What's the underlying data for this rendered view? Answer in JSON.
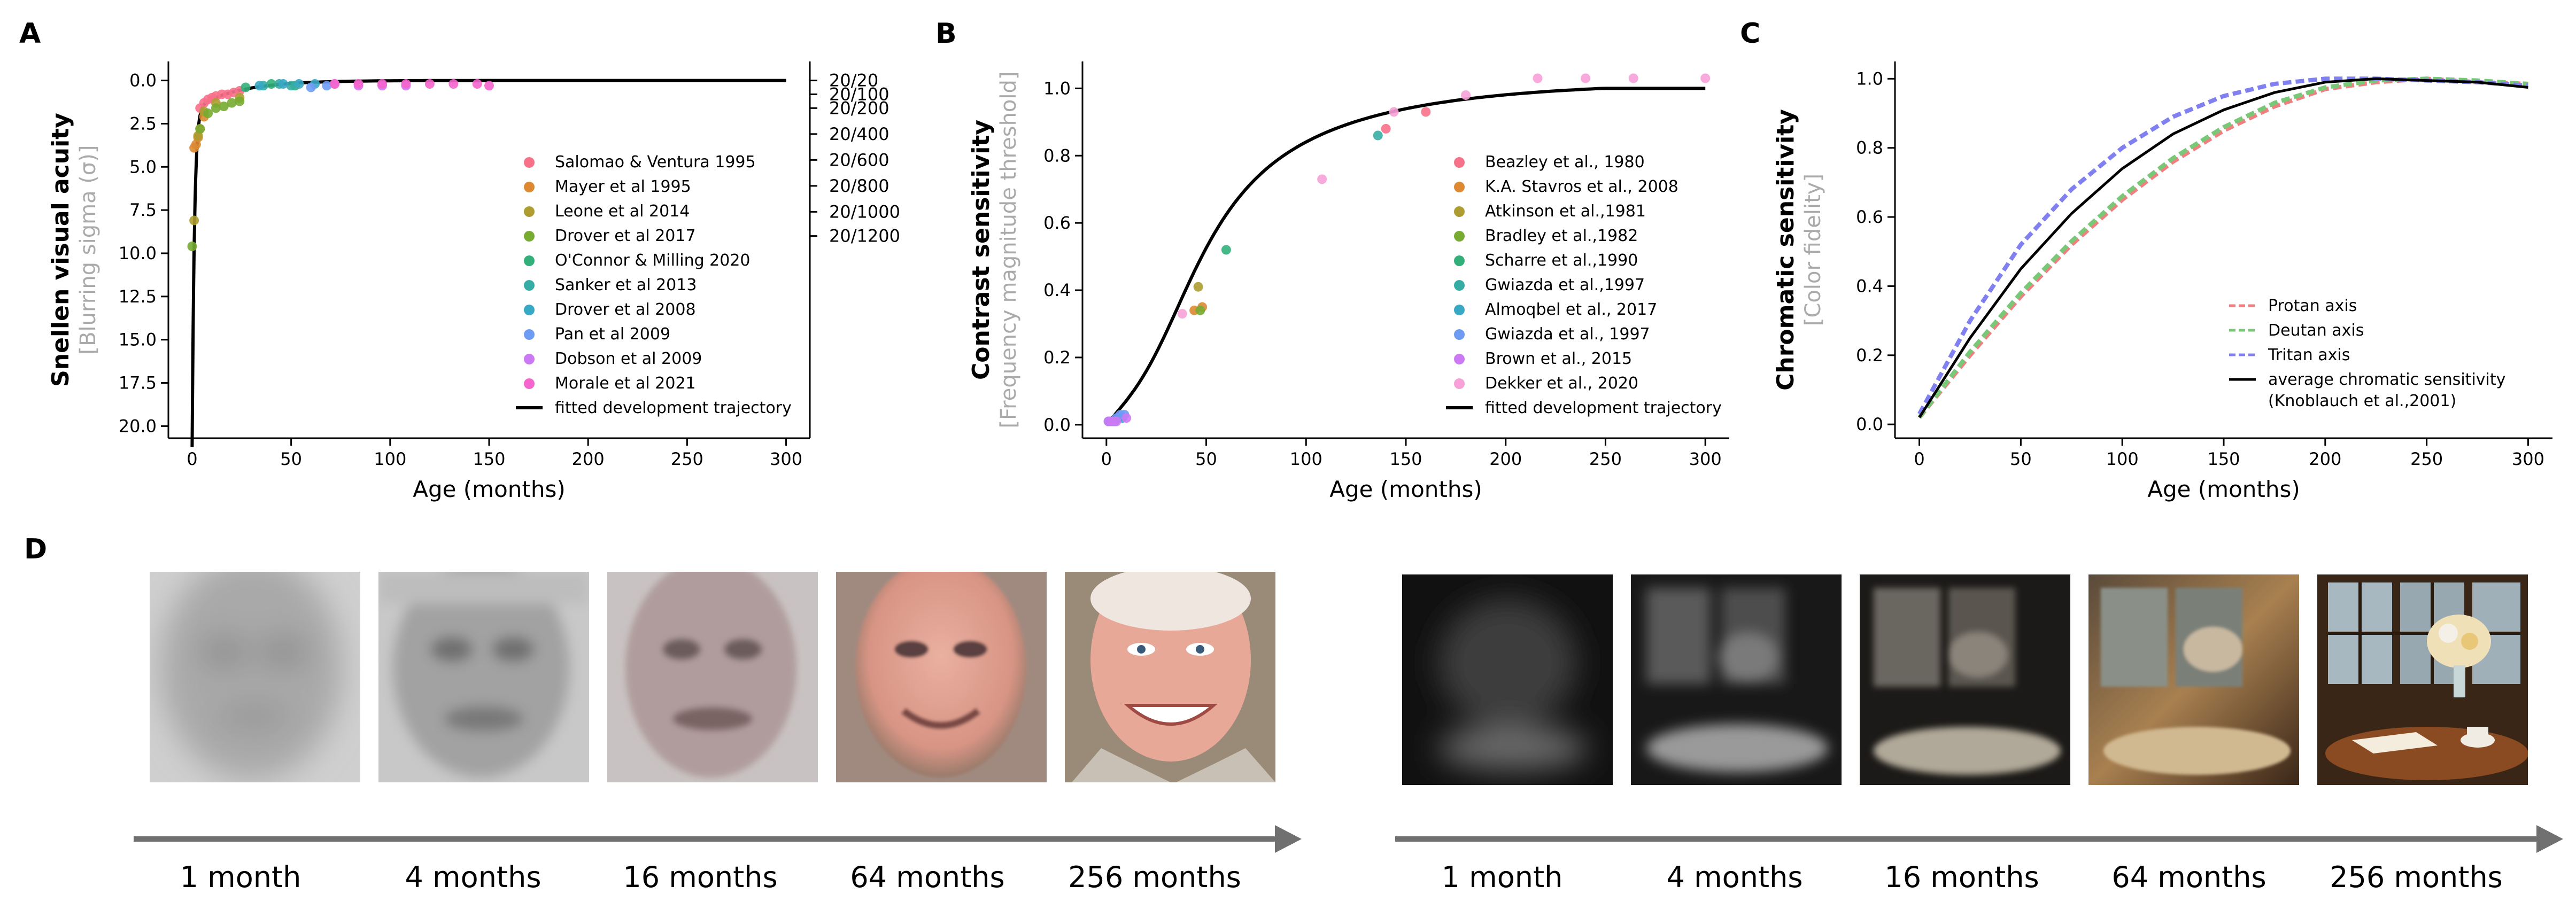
{
  "panels": {
    "a": "A",
    "b": "B",
    "c": "C",
    "d": "D"
  },
  "chart_data": [
    {
      "type": "scatter",
      "panel": "A",
      "ylabel": "Snellen visual acuity",
      "ylabel_sub": "[Blurring sigma (σ)]",
      "xlabel": "Age (months)",
      "xlim": [
        -12,
        312
      ],
      "ylim": [
        20.7,
        -1.1
      ],
      "y_inverted": true,
      "xticks": [
        0,
        50,
        100,
        150,
        200,
        250,
        300
      ],
      "yticks": [
        0.0,
        2.5,
        5.0,
        7.5,
        10.0,
        12.5,
        15.0,
        17.5,
        20.0
      ],
      "ytick_labels": [
        "0.0",
        "2.5",
        "5.0",
        "7.5",
        "10.0",
        "12.5",
        "15.0",
        "17.5",
        "20.0"
      ],
      "right_ticks": [
        {
          "label": "20/20",
          "y": 0.0
        },
        {
          "label": "20/100",
          "y": 0.8
        },
        {
          "label": "20/200",
          "y": 1.6
        },
        {
          "label": "20/400",
          "y": 3.1
        },
        {
          "label": "20/600",
          "y": 4.6
        },
        {
          "label": "20/800",
          "y": 6.1
        },
        {
          "label": "20/1000",
          "y": 7.6
        },
        {
          "label": "20/1200",
          "y": 9.0
        }
      ],
      "legend_position": "lower-right",
      "series": [
        {
          "name": "Salomao & Ventura 1995",
          "color": "#f77189",
          "points": [
            [
              4,
              1.6
            ],
            [
              6,
              1.3
            ],
            [
              8,
              1.1
            ],
            [
              10,
              1.0
            ],
            [
              12,
              0.9
            ],
            [
              15,
              0.8
            ],
            [
              18,
              0.8
            ],
            [
              21,
              0.7
            ],
            [
              24,
              0.6
            ]
          ]
        },
        {
          "name": "Mayer et al 1995",
          "color": "#dc8932",
          "points": [
            [
              1,
              3.9
            ],
            [
              2,
              3.7
            ],
            [
              3,
              3.3
            ],
            [
              4,
              2.8
            ],
            [
              6,
              2.1
            ]
          ]
        },
        {
          "name": "Leone et al 2014",
          "color": "#ae9d31",
          "points": [
            [
              1,
              8.1
            ],
            [
              3,
              3.2
            ],
            [
              6,
              1.8
            ],
            [
              12,
              1.3
            ],
            [
              24,
              1.0
            ]
          ]
        },
        {
          "name": "Drover et al 2017",
          "color": "#77ab31",
          "points": [
            [
              0,
              9.6
            ],
            [
              4,
              2.8
            ],
            [
              8,
              1.9
            ],
            [
              12,
              1.6
            ],
            [
              16,
              1.5
            ],
            [
              20,
              1.3
            ],
            [
              24,
              1.2
            ]
          ]
        },
        {
          "name": "O'Connor & Milling 2020",
          "color": "#33b07a",
          "points": [
            [
              27,
              0.4
            ],
            [
              40,
              0.2
            ],
            [
              52,
              0.3
            ]
          ]
        },
        {
          "name": "Sanker et al 2013",
          "color": "#36ada4",
          "points": [
            [
              36,
              0.3
            ],
            [
              44,
              0.2
            ],
            [
              50,
              0.3
            ]
          ]
        },
        {
          "name": "Drover et al 2008",
          "color": "#38a9c5",
          "points": [
            [
              34,
              0.3
            ],
            [
              46,
              0.2
            ],
            [
              54,
              0.2
            ],
            [
              62,
              0.2
            ]
          ]
        },
        {
          "name": "Pan et al 2009",
          "color": "#6e9bf4",
          "points": [
            [
              60,
              0.4
            ],
            [
              68,
              0.3
            ]
          ]
        },
        {
          "name": "Dobson et al 2009",
          "color": "#cc7af4",
          "points": [
            [
              72,
              0.2
            ],
            [
              84,
              0.3
            ],
            [
              96,
              0.3
            ],
            [
              108,
              0.3
            ]
          ]
        },
        {
          "name": "Morale et al 2021",
          "color": "#f565cc",
          "points": [
            [
              72,
              0.2
            ],
            [
              84,
              0.2
            ],
            [
              96,
              0.2
            ],
            [
              108,
              0.2
            ],
            [
              120,
              0.2
            ],
            [
              132,
              0.2
            ],
            [
              144,
              0.2
            ],
            [
              150,
              0.3
            ]
          ]
        }
      ],
      "fitted": {
        "name": "fitted development trajectory",
        "color": "#000000"
      }
    },
    {
      "type": "scatter",
      "panel": "B",
      "ylabel": "Contrast sensitivity",
      "ylabel_sub": "[Frequency magnitude threshold]",
      "xlabel": "Age (months)",
      "xlim": [
        -12,
        312
      ],
      "ylim": [
        -0.04,
        1.08
      ],
      "xticks": [
        0,
        50,
        100,
        150,
        200,
        250,
        300
      ],
      "yticks": [
        0.0,
        0.2,
        0.4,
        0.6,
        0.8,
        1.0
      ],
      "ytick_labels": [
        "0.0",
        "0.2",
        "0.4",
        "0.6",
        "0.8",
        "1.0"
      ],
      "legend_position": "lower-right",
      "series": [
        {
          "name": "Beazley et al., 1980",
          "color": "#f77189",
          "points": [
            [
              140,
              0.88
            ],
            [
              160,
              0.93
            ]
          ]
        },
        {
          "name": "K.A. Stavros et al., 2008",
          "color": "#dc8932",
          "points": [
            [
              44,
              0.34
            ],
            [
              48,
              0.35
            ]
          ]
        },
        {
          "name": "Atkinson et al.,1981",
          "color": "#ae9d31",
          "points": [
            [
              46,
              0.41
            ]
          ]
        },
        {
          "name": "Bradley et al.,1982",
          "color": "#77ab31",
          "points": [
            [
              47,
              0.34
            ]
          ]
        },
        {
          "name": "Scharre et al.,1990",
          "color": "#33b07a",
          "points": [
            [
              60,
              0.52
            ]
          ]
        },
        {
          "name": "Gwiazda et al.,1997",
          "color": "#36ada4",
          "points": [
            [
              136,
              0.86
            ]
          ]
        },
        {
          "name": "Almoqbel et al., 2017",
          "color": "#38a9c5",
          "points": [
            [
              2,
              0.01
            ],
            [
              4,
              0.01
            ],
            [
              6,
              0.02
            ],
            [
              8,
              0.02
            ]
          ]
        },
        {
          "name": "Gwiazda et al., 1997",
          "color": "#6e9bf4",
          "points": [
            [
              1,
              0.01
            ],
            [
              3,
              0.01
            ],
            [
              5,
              0.02
            ],
            [
              7,
              0.03
            ],
            [
              9,
              0.03
            ]
          ]
        },
        {
          "name": "Brown et al., 2015",
          "color": "#cc7af4",
          "points": [
            [
              1,
              0.01
            ],
            [
              3,
              0.01
            ],
            [
              5,
              0.01
            ],
            [
              10,
              0.02
            ]
          ]
        },
        {
          "name": "Dekker et al., 2020",
          "color": "#f7a1d8",
          "points": [
            [
              38,
              0.33
            ],
            [
              108,
              0.73
            ],
            [
              144,
              0.93
            ],
            [
              180,
              0.98
            ],
            [
              216,
              1.03
            ],
            [
              240,
              1.03
            ],
            [
              264,
              1.03
            ],
            [
              300,
              1.03
            ]
          ]
        }
      ],
      "fitted": {
        "name": "fitted development trajectory",
        "color": "#000000"
      }
    },
    {
      "type": "line",
      "panel": "C",
      "ylabel": "Chromatic sensitivity",
      "ylabel_sub": "[Color fidelity]",
      "xlabel": "Age (months)",
      "xlim": [
        -12,
        312
      ],
      "ylim": [
        -0.04,
        1.05
      ],
      "xticks": [
        0,
        50,
        100,
        150,
        200,
        250,
        300
      ],
      "yticks": [
        0.0,
        0.2,
        0.4,
        0.6,
        0.8,
        1.0
      ],
      "ytick_labels": [
        "0.0",
        "0.2",
        "0.4",
        "0.6",
        "0.8",
        "1.0"
      ],
      "legend_position": "lower-right",
      "series": [
        {
          "name": "Protan axis",
          "color": "#f08080",
          "dashed": true,
          "x": [
            0,
            25,
            50,
            75,
            100,
            125,
            150,
            175,
            200,
            225,
            250,
            275,
            300
          ],
          "values": [
            0.02,
            0.2,
            0.37,
            0.52,
            0.65,
            0.76,
            0.85,
            0.92,
            0.97,
            0.99,
            1.0,
            0.99,
            0.985
          ]
        },
        {
          "name": "Deutan axis",
          "color": "#78c878",
          "dashed": true,
          "x": [
            0,
            25,
            50,
            75,
            100,
            125,
            150,
            175,
            200,
            225,
            250,
            275,
            300
          ],
          "values": [
            0.02,
            0.21,
            0.38,
            0.53,
            0.66,
            0.77,
            0.86,
            0.93,
            0.975,
            0.995,
            1.0,
            0.995,
            0.985
          ]
        },
        {
          "name": "Tritan axis",
          "color": "#8080f0",
          "dashed": true,
          "x": [
            0,
            25,
            50,
            75,
            100,
            125,
            150,
            175,
            200,
            225,
            250,
            275,
            300
          ],
          "values": [
            0.03,
            0.3,
            0.52,
            0.68,
            0.8,
            0.89,
            0.95,
            0.985,
            1.0,
            1.0,
            0.995,
            0.99,
            0.98
          ]
        },
        {
          "name": "average chromatic sensitivity",
          "name2": "(Knoblauch et al.,2001)",
          "color": "#000000",
          "dashed": false,
          "x": [
            0,
            25,
            50,
            75,
            100,
            125,
            150,
            175,
            200,
            225,
            250,
            275,
            300
          ],
          "values": [
            0.02,
            0.25,
            0.45,
            0.61,
            0.74,
            0.84,
            0.91,
            0.96,
            0.99,
            1.0,
            0.995,
            0.99,
            0.975
          ]
        }
      ]
    }
  ],
  "panel_d": {
    "timelines": [
      {
        "subject": "face",
        "labels": [
          "1 month",
          "4 months",
          "16 months",
          "64 months",
          "256 months"
        ]
      },
      {
        "subject": "scene",
        "labels": [
          "1 month",
          "4 months",
          "16 months",
          "64 months",
          "256 months"
        ]
      }
    ]
  }
}
